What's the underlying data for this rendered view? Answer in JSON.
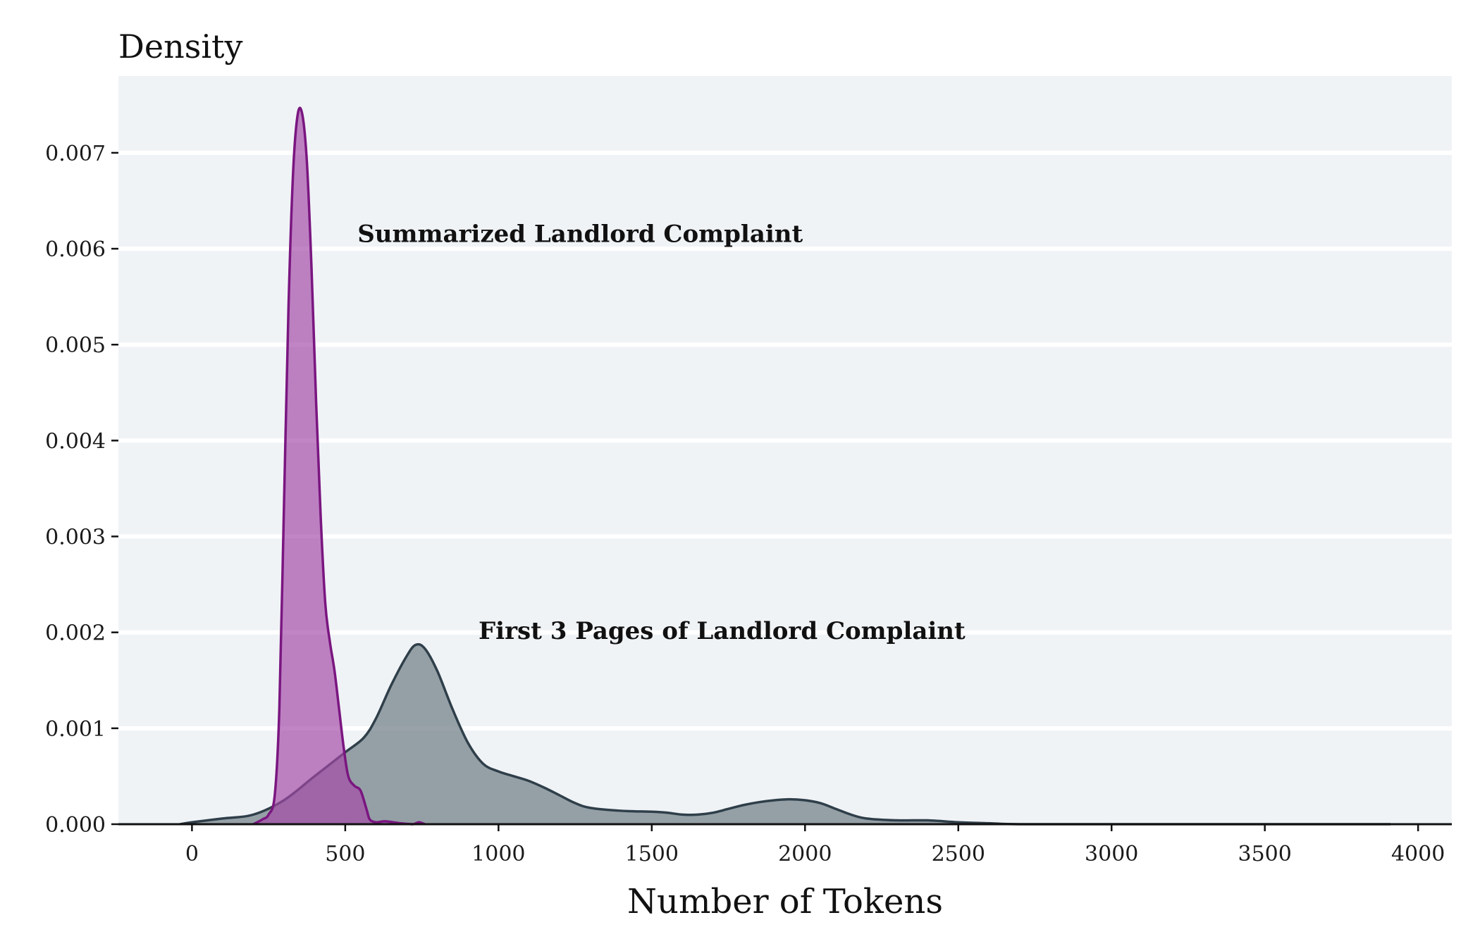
{
  "chart_data": {
    "type": "area",
    "title": "",
    "xlabel": "Number of Tokens",
    "ylabel": "Density",
    "xlim": [
      -240,
      4110
    ],
    "ylim": [
      0,
      0.0078
    ],
    "x_ticks": [
      0,
      500,
      1000,
      1500,
      2000,
      2500,
      3000,
      3500,
      4000
    ],
    "y_ticks": [
      0.0,
      0.001,
      0.002,
      0.003,
      0.004,
      0.005,
      0.006,
      0.007
    ],
    "y_tick_labels": [
      "0.000",
      "0.001",
      "0.002",
      "0.003",
      "0.004",
      "0.005",
      "0.006",
      "0.007"
    ],
    "grid": "horizontal",
    "legend": "none",
    "colors": {
      "background": "#f0f3f6",
      "grid": "#ffffff",
      "first3_fill": "#7b8890",
      "first3_line": "#2f3f4a",
      "summary_fill": "#a34aa8",
      "summary_line": "#7a1680"
    },
    "series": [
      {
        "id": "first3",
        "x": [
          -40,
          0,
          100,
          200,
          300,
          400,
          500,
          560,
          600,
          650,
          700,
          730,
          760,
          800,
          850,
          900,
          950,
          1000,
          1050,
          1100,
          1150,
          1200,
          1250,
          1300,
          1400,
          1500,
          1550,
          1600,
          1650,
          1700,
          1750,
          1800,
          1850,
          1900,
          1950,
          2000,
          2050,
          2100,
          2150,
          2200,
          2300,
          2400,
          2500,
          2600,
          2700,
          3000,
          3500,
          3910
        ],
        "values": [
          0.0,
          2e-05,
          6e-05,
          0.0001,
          0.00025,
          0.0005,
          0.00075,
          0.0009,
          0.0011,
          0.00145,
          0.00175,
          0.00187,
          0.00183,
          0.0016,
          0.0012,
          0.00085,
          0.00063,
          0.00055,
          0.0005,
          0.00045,
          0.00038,
          0.0003,
          0.00022,
          0.00017,
          0.00014,
          0.00013,
          0.00012,
          0.0001,
          0.0001,
          0.00012,
          0.00016,
          0.0002,
          0.00023,
          0.00025,
          0.00026,
          0.00025,
          0.00022,
          0.00016,
          0.0001,
          6e-05,
          4e-05,
          4e-05,
          2e-05,
          1e-05,
          0.0,
          0.0,
          0.0,
          0.0
        ]
      },
      {
        "id": "summary",
        "x": [
          200,
          230,
          250,
          270,
          285,
          300,
          315,
          330,
          345,
          360,
          375,
          390,
          405,
          420,
          435,
          450,
          465,
          480,
          495,
          510,
          530,
          550,
          570,
          580,
          600,
          630,
          680,
          720,
          740,
          760
        ],
        "values": [
          0.0,
          5e-05,
          0.0001,
          0.0003,
          0.0012,
          0.0033,
          0.0054,
          0.0068,
          0.0074,
          0.0074,
          0.0069,
          0.0058,
          0.0044,
          0.0032,
          0.0023,
          0.0019,
          0.0016,
          0.0012,
          0.0008,
          0.0005,
          0.0004,
          0.00035,
          0.00015,
          5e-05,
          2e-05,
          3e-05,
          1e-05,
          0.0,
          2e-05,
          0.0
        ]
      }
    ],
    "annotations": [
      {
        "text": "Summarized Landlord Complaint",
        "x": 540,
        "y": 0.00607
      },
      {
        "text": "First 3 Pages of Landlord Complaint",
        "x": 935,
        "y": 0.00193
      }
    ]
  }
}
